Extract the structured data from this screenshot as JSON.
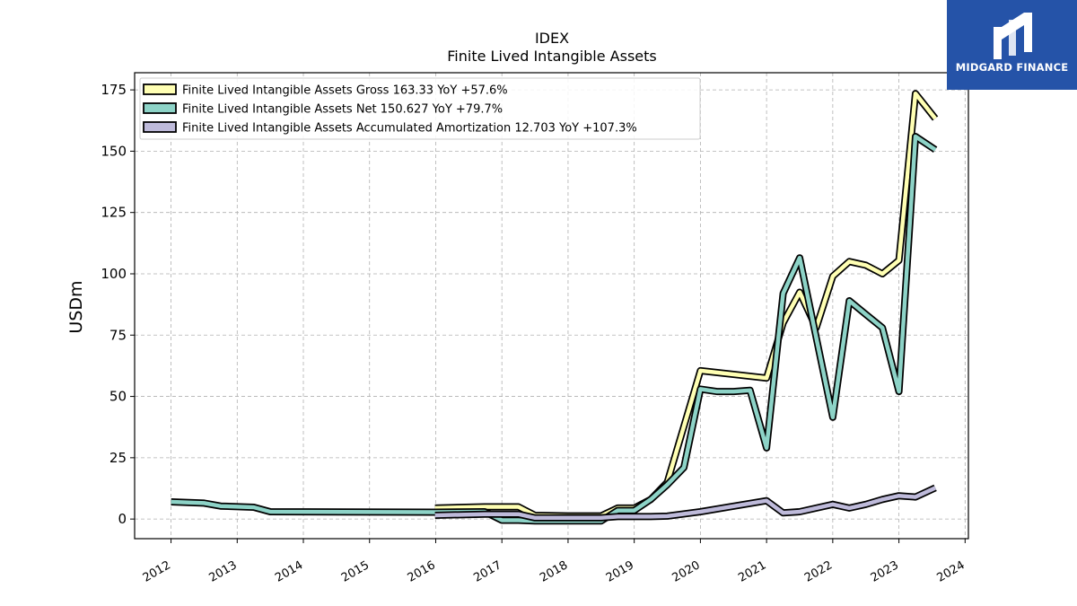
{
  "brand": {
    "name": "MIDGARD FINANCE",
    "bg_color": "#2553a8"
  },
  "chart_data": {
    "type": "line",
    "title": "IDEX",
    "subtitle": "Finite Lived Intangible Assets",
    "ylabel": "USDm",
    "xlabel": "",
    "ylim": [
      -8,
      182
    ],
    "xlim": [
      2011.45,
      2024.05
    ],
    "yticks": [
      0,
      25,
      50,
      75,
      100,
      125,
      150,
      175
    ],
    "xticks": [
      "2012",
      "2013",
      "2014",
      "2015",
      "2016",
      "2017",
      "2018",
      "2019",
      "2020",
      "2021",
      "2022",
      "2023",
      "2024"
    ],
    "grid": true,
    "legend_position": "top-left",
    "series": [
      {
        "name": "Finite Lived Intangible Assets Gross",
        "legend_label": "Finite Lived Intangible Assets Gross  163.33 YoY +57.6%",
        "color": "#ffffb3",
        "points": [
          [
            2015.99,
            4.5
          ],
          [
            2016.74,
            5.0
          ],
          [
            2017.25,
            5.0
          ],
          [
            2017.5,
            1.5
          ],
          [
            2018.0,
            1.3
          ],
          [
            2018.5,
            1.3
          ],
          [
            2018.75,
            4.5
          ],
          [
            2019.0,
            4.5
          ],
          [
            2019.25,
            8.0
          ],
          [
            2019.5,
            15.0
          ],
          [
            2020.0,
            60.5
          ],
          [
            2020.5,
            59.0
          ],
          [
            2021.0,
            57.5
          ],
          [
            2021.25,
            80.0
          ],
          [
            2021.5,
            92.5
          ],
          [
            2021.75,
            78.0
          ],
          [
            2022.0,
            99.0
          ],
          [
            2022.25,
            105.0
          ],
          [
            2022.5,
            103.5
          ],
          [
            2022.75,
            100.0
          ],
          [
            2023.0,
            105.5
          ],
          [
            2023.25,
            173.5
          ],
          [
            2023.55,
            163.33
          ]
        ]
      },
      {
        "name": "Finite Lived Intangible Assets Net",
        "legend_label": "Finite Lived Intangible Assets Net  150.627 YoY +79.7%",
        "color": "#8dd3c7",
        "points": [
          [
            2012.0,
            7.0
          ],
          [
            2012.5,
            6.5
          ],
          [
            2012.75,
            5.3
          ],
          [
            2013.25,
            4.8
          ],
          [
            2013.5,
            3.0
          ],
          [
            2015.99,
            2.8
          ],
          [
            2016.74,
            3.0
          ],
          [
            2017.0,
            -0.5
          ],
          [
            2017.25,
            -0.5
          ],
          [
            2017.5,
            -0.8
          ],
          [
            2018.0,
            -0.8
          ],
          [
            2018.5,
            -0.8
          ],
          [
            2018.75,
            3.5
          ],
          [
            2019.0,
            3.5
          ],
          [
            2019.25,
            8.0
          ],
          [
            2019.5,
            14.0
          ],
          [
            2019.75,
            21.0
          ],
          [
            2020.0,
            53.0
          ],
          [
            2020.25,
            52.0
          ],
          [
            2020.5,
            52.0
          ],
          [
            2020.75,
            52.5
          ],
          [
            2021.0,
            29.0
          ],
          [
            2021.25,
            92.0
          ],
          [
            2021.5,
            106.5
          ],
          [
            2022.0,
            41.5
          ],
          [
            2022.25,
            89.0
          ],
          [
            2022.5,
            83.5
          ],
          [
            2022.75,
            78.0
          ],
          [
            2023.0,
            52.0
          ],
          [
            2023.25,
            156.0
          ],
          [
            2023.55,
            150.627
          ]
        ]
      },
      {
        "name": "Finite Lived Intangible Assets Accumulated Amortization",
        "legend_label": "Finite Lived Intangible Assets Accumulated Amortization  12.703 YoY +107.3%",
        "color": "#bebada",
        "points": [
          [
            2015.99,
            1.5
          ],
          [
            2016.74,
            2.0
          ],
          [
            2017.0,
            2.0
          ],
          [
            2017.25,
            2.0
          ],
          [
            2017.5,
            0.5
          ],
          [
            2018.0,
            0.5
          ],
          [
            2018.5,
            0.5
          ],
          [
            2018.75,
            1.0
          ],
          [
            2019.0,
            1.0
          ],
          [
            2019.25,
            1.0
          ],
          [
            2019.5,
            1.2
          ],
          [
            2020.0,
            3.0
          ],
          [
            2021.0,
            7.5
          ],
          [
            2021.25,
            2.5
          ],
          [
            2021.5,
            3.0
          ],
          [
            2022.0,
            6.0
          ],
          [
            2022.25,
            4.5
          ],
          [
            2022.5,
            6.0
          ],
          [
            2022.75,
            8.0
          ],
          [
            2023.0,
            9.5
          ],
          [
            2023.25,
            9.0
          ],
          [
            2023.55,
            12.703
          ]
        ]
      }
    ]
  }
}
